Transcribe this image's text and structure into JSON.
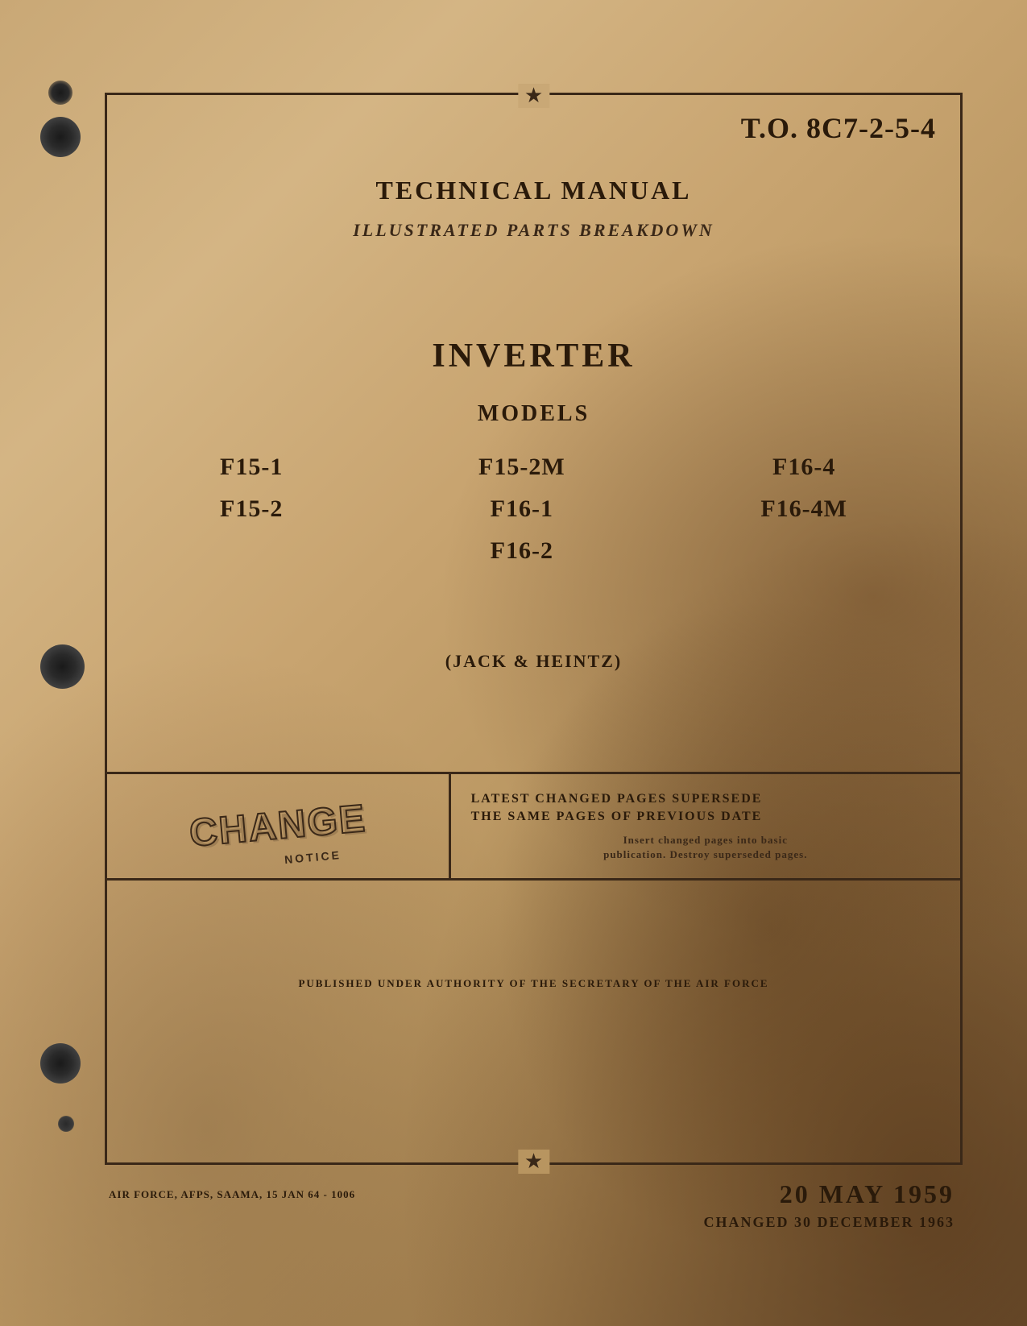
{
  "document": {
    "to_number": "T.O. 8C7-2-5-4",
    "title": "TECHNICAL MANUAL",
    "subtitle": "ILLUSTRATED PARTS BREAKDOWN",
    "product": "INVERTER",
    "models_label": "MODELS",
    "manufacturer": "(JACK & HEINTZ)"
  },
  "models": {
    "col1": [
      "F15-1",
      "F15-2"
    ],
    "col2": [
      "F15-2M",
      "F16-1",
      "F16-2"
    ],
    "col3": [
      "F16-4",
      "F16-4M"
    ]
  },
  "change_notice": {
    "label": "CHANGE",
    "sublabel": "NOTICE",
    "heading_line1": "LATEST CHANGED PAGES SUPERSEDE",
    "heading_line2": "THE SAME PAGES OF PREVIOUS DATE",
    "instruction_line1": "Insert changed pages into basic",
    "instruction_line2": "publication. Destroy superseded pages."
  },
  "authority": "PUBLISHED UNDER AUTHORITY OF THE SECRETARY OF THE AIR FORCE",
  "footer": {
    "print_info": "AIR FORCE, AFPS, SAAMA, 15 JAN 64 - 1006",
    "date": "20 MAY 1959",
    "changed": "CHANGED 30 DECEMBER 1963"
  },
  "styling": {
    "page_bg_primary": "#c9a876",
    "page_bg_stain": "#7a5c38",
    "text_primary": "#2a1a0a",
    "text_secondary": "#3a2818",
    "border_color": "#3a2818",
    "title_fontsize": 32,
    "product_fontsize": 42,
    "to_number_fontsize": 36,
    "model_fontsize": 30,
    "date_fontsize": 32
  }
}
